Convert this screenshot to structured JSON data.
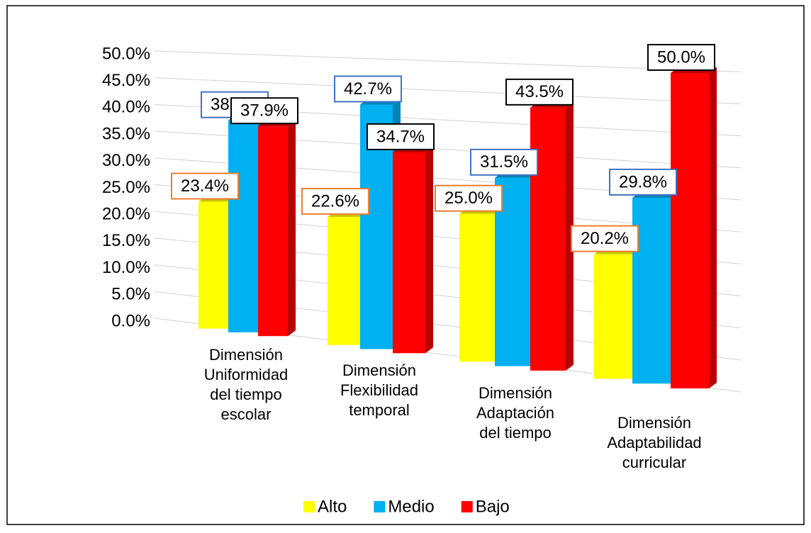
{
  "chart_data": {
    "type": "bar3d",
    "categories": [
      [
        "Dimensión",
        "Uniformidad",
        "del tiempo",
        "escolar"
      ],
      [
        "Dimensión",
        "Flexibilidad",
        "temporal"
      ],
      [
        "Dimensión",
        "Adaptación",
        "del tiempo"
      ],
      [
        "Dimensión",
        "Adaptabilidad",
        "curricular"
      ]
    ],
    "series": [
      {
        "name": "Alto",
        "color": "#ffff00",
        "side_color": "#c9c900",
        "label_color": "#ed7d31",
        "values": [
          23.4,
          22.6,
          25.0,
          20.2
        ],
        "value_labels": [
          "23.4%",
          "22.6%",
          "25.0%",
          "20.2%"
        ]
      },
      {
        "name": "Medio",
        "color": "#00b0f0",
        "side_color": "#0084b8",
        "label_color": "#4472c4",
        "values": [
          38.7,
          42.7,
          31.5,
          29.8
        ],
        "value_labels": [
          "38.7%",
          "42.7%",
          "31.5%",
          "29.8%"
        ]
      },
      {
        "name": "Bajo",
        "color": "#ff0000",
        "side_color": "#b80000",
        "label_color": "#000000",
        "values": [
          37.9,
          34.7,
          43.5,
          50.0
        ],
        "value_labels": [
          "37.9%",
          "34.7%",
          "43.5%",
          "50.0%"
        ]
      }
    ],
    "ylim": [
      0,
      50
    ],
    "yticks": [
      {
        "value": 0,
        "label": "0.0%"
      },
      {
        "value": 5,
        "label": "5.0%"
      },
      {
        "value": 10,
        "label": "10.0%"
      },
      {
        "value": 15,
        "label": "15.0%"
      },
      {
        "value": 20,
        "label": "20.0%"
      },
      {
        "value": 25,
        "label": "25.0%"
      },
      {
        "value": 30,
        "label": "30.0%"
      },
      {
        "value": 35,
        "label": "35.0%"
      },
      {
        "value": 40,
        "label": "40.0%"
      },
      {
        "value": 45,
        "label": "45.0%"
      },
      {
        "value": 50,
        "label": "50.0%"
      }
    ],
    "grid": true,
    "legend": "bottom"
  }
}
